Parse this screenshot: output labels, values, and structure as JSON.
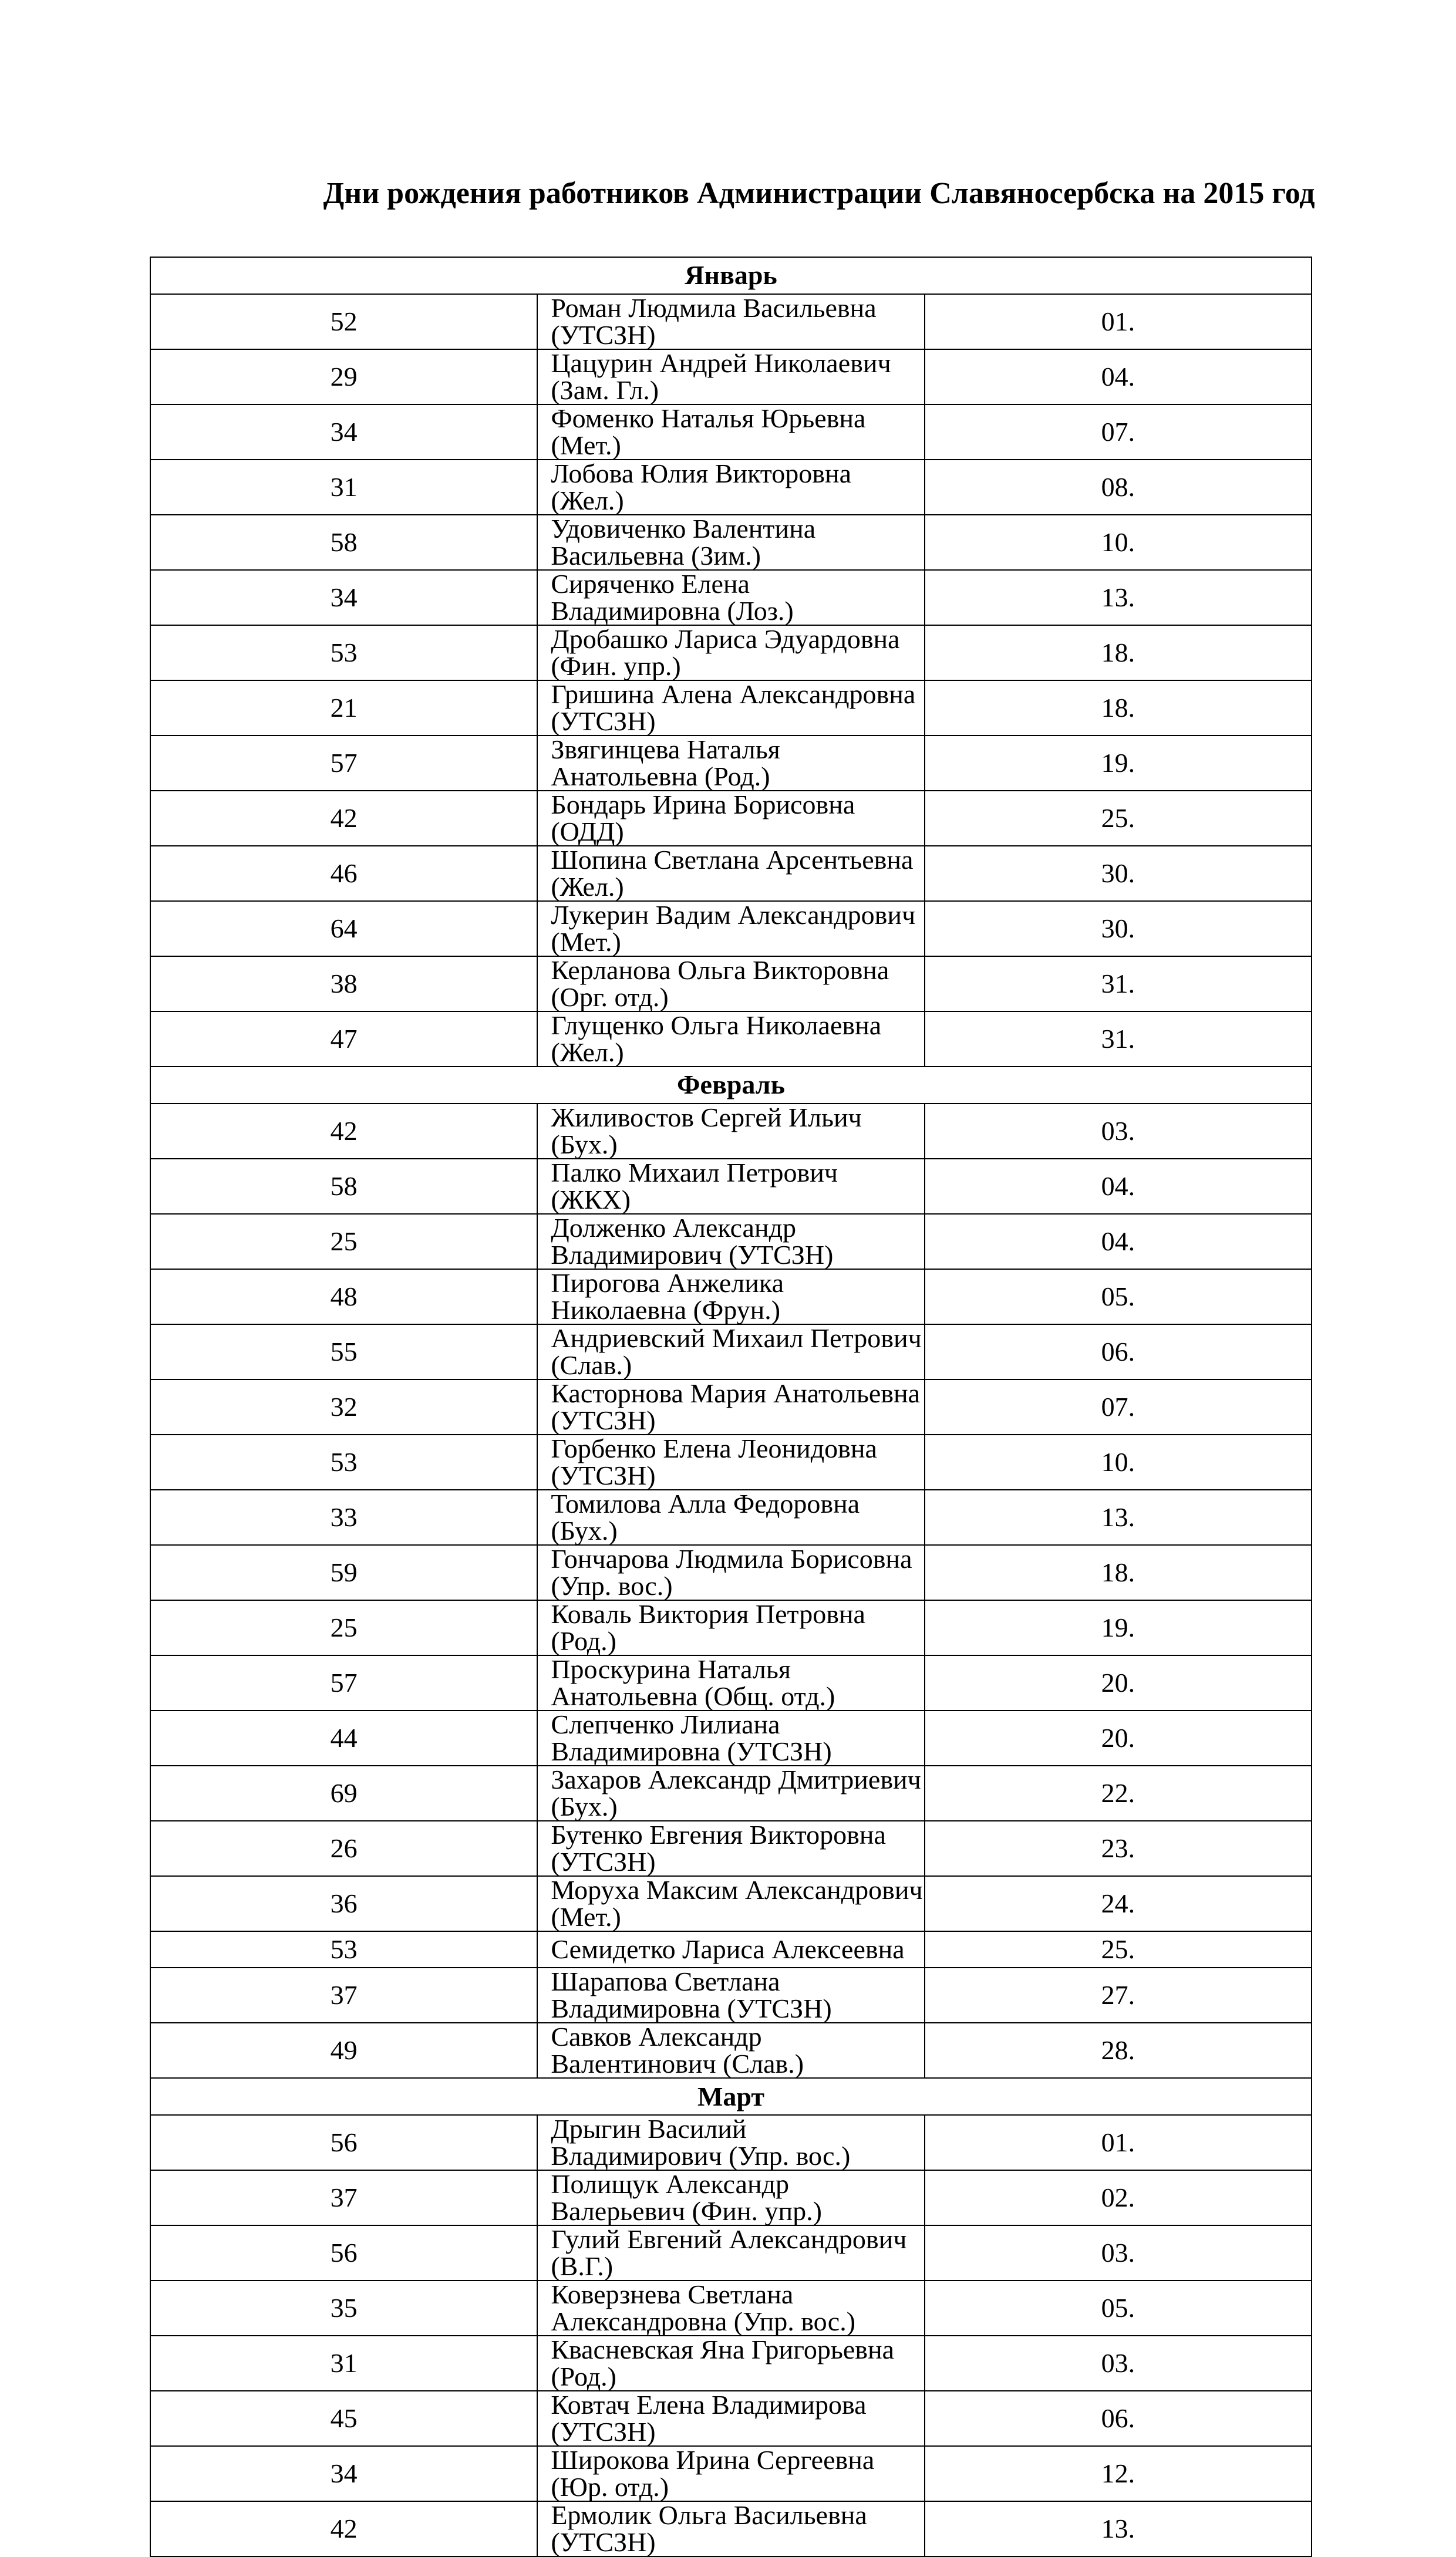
{
  "title": "Дни рождения работников Администрации Славяносербска на 2015 год",
  "months": [
    {
      "name": "Январь",
      "rows": [
        [
          "52",
          "Роман Людмила Васильевна (УТСЗН)",
          "01."
        ],
        [
          "29",
          "Цацурин Андрей Николаевич (Зам. Гл.)",
          "04."
        ],
        [
          "34",
          "Фоменко Наталья Юрьевна (Мет.)",
          "07."
        ],
        [
          "31",
          "Лобова Юлия Викторовна (Жел.)",
          "08."
        ],
        [
          "58",
          "Удовиченко Валентина Васильевна (Зим.)",
          "10."
        ],
        [
          "34",
          "Сиряченко Елена Владимировна (Лоз.)",
          "13."
        ],
        [
          "53",
          "Дробашко Лариса Эдуардовна (Фин. упр.)",
          "18."
        ],
        [
          "21",
          "Гришина Алена Александровна (УТСЗН)",
          "18."
        ],
        [
          "57",
          "Звягинцева Наталья Анатольевна (Род.)",
          "19."
        ],
        [
          "42",
          "Бондарь Ирина Борисовна (ОДД)",
          "25."
        ],
        [
          "46",
          "Шопина Светлана Арсентьевна (Жел.)",
          "30."
        ],
        [
          "64",
          "Лукерин Вадим Александрович (Мет.)",
          "30."
        ],
        [
          "38",
          "Керланова Ольга Викторовна (Орг. отд.)",
          "31."
        ],
        [
          "47",
          "Глущенко Ольга Николаевна (Жел.)",
          "31."
        ]
      ]
    },
    {
      "name": "Февраль",
      "rows": [
        [
          "42",
          "Жиливостов Сергей Ильич (Бух.)",
          "03."
        ],
        [
          "58",
          "Палко Михаил Петрович (ЖКХ)",
          "04."
        ],
        [
          "25",
          "Долженко Александр Владимирович (УТСЗН)",
          "04."
        ],
        [
          "48",
          "Пирогова Анжелика Николаевна (Фрун.)",
          "05."
        ],
        [
          "55",
          "Андриевский Михаил Петрович (Слав.)",
          "06."
        ],
        [
          "32",
          "Касторнова Мария Анатольевна (УТСЗН)",
          "07."
        ],
        [
          "53",
          "Горбенко Елена Леонидовна (УТСЗН)",
          "10."
        ],
        [
          "33",
          "Томилова Алла Федоровна (Бух.)",
          "13."
        ],
        [
          "59",
          "Гончарова Людмила Борисовна (Упр. вос.)",
          "18."
        ],
        [
          "25",
          "Коваль Виктория Петровна (Род.)",
          "19."
        ],
        [
          "57",
          "Проскурина Наталья Анатольевна (Общ. отд.)",
          "20."
        ],
        [
          "44",
          "Слепченко Лилиана Владимировна (УТСЗН)",
          "20."
        ],
        [
          "69",
          "Захаров Александр Дмитриевич (Бух.)",
          "22."
        ],
        [
          "26",
          "Бутенко Евгения Викторовна (УТСЗН)",
          "23."
        ],
        [
          "36",
          "Моруха Максим Александрович (Мет.)",
          "24."
        ],
        [
          "53",
          "Семидетко Лариса Алексеевна",
          "25."
        ],
        [
          "37",
          "Шарапова Светлана Владимировна (УТСЗН)",
          "27."
        ],
        [
          "49",
          "Савков Александр Валентинович (Слав.)",
          "28."
        ]
      ]
    },
    {
      "name": "Март",
      "rows": [
        [
          "56",
          "Дрыгин Василий Владимирович (Упр. вос.)",
          "01."
        ],
        [
          "37",
          "Полищук Александр Валерьевич (Фин. упр.)",
          "02."
        ],
        [
          "56",
          "Гулий Евгений Александрович (В.Г.)",
          "03."
        ],
        [
          "35",
          "Коверзнева Светлана Александровна (Упр. вос.)",
          "05."
        ],
        [
          "31",
          "Квасневская Яна Григорьевна (Род.)",
          "03."
        ],
        [
          "45",
          "Ковтач Елена Владимирова (УТСЗН)",
          "06."
        ],
        [
          "34",
          "Широкова Ирина Сергеевна (Юр. отд.)",
          "12."
        ],
        [
          "42",
          "Ермолик Ольга Васильевна (УТСЗН)",
          "13."
        ]
      ]
    }
  ]
}
